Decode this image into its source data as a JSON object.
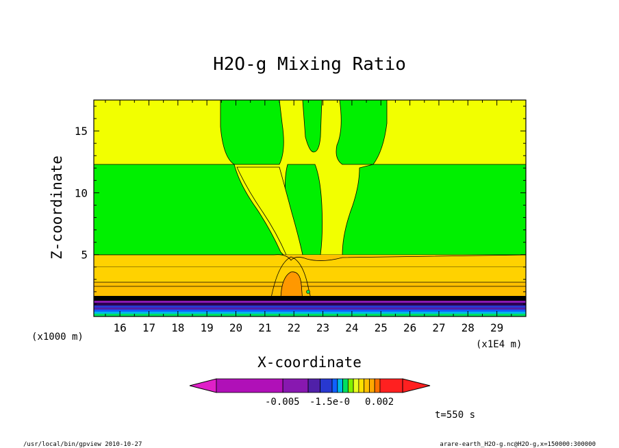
{
  "chart_data": {
    "type": "heatmap",
    "title": "H2O-g Mixing Ratio",
    "xlabel": "X-coordinate",
    "ylabel": "Z-coordinate",
    "x_unit_left": "(x1000 m)",
    "x_unit_right": "(x1E4 m)",
    "x_ticks": [
      "16",
      "17",
      "18",
      "19",
      "20",
      "21",
      "22",
      "23",
      "24",
      "25",
      "26",
      "27",
      "28",
      "29"
    ],
    "y_ticks": [
      "5",
      "10",
      "15"
    ],
    "xlim": [
      15.1,
      30.0
    ],
    "ylim": [
      0,
      17.5
    ],
    "legend": {
      "labels": [
        "-0.005",
        "-1.5e-0",
        "0.002"
      ],
      "colors": [
        "#e020c8",
        "#b010b8",
        "#8818b0",
        "#5020a8",
        "#2838d0",
        "#1060ff",
        "#00b8e8",
        "#00e060",
        "#80f000",
        "#e8ff20",
        "#ffe000",
        "#ffc000",
        "#ffa800",
        "#ff7000",
        "#ff2020"
      ]
    },
    "regions": [
      {
        "name": "lower-moist-band",
        "color": "#ffc000"
      },
      {
        "name": "inner-band",
        "color": "#ffd200"
      },
      {
        "name": "green-mid-layer",
        "color": "#00f000"
      },
      {
        "name": "yellow-upper-layer",
        "color": "#f2ff00"
      },
      {
        "name": "central-core",
        "color": "#ff9800"
      }
    ],
    "grid": false
  },
  "annotation": {
    "time": "t=550 s"
  },
  "footer": {
    "left": "/usr/local/bin/gpview  2010-10-27",
    "right": "arare-earth_H2O-g.nc@H2O-g,x=150000:300000"
  }
}
